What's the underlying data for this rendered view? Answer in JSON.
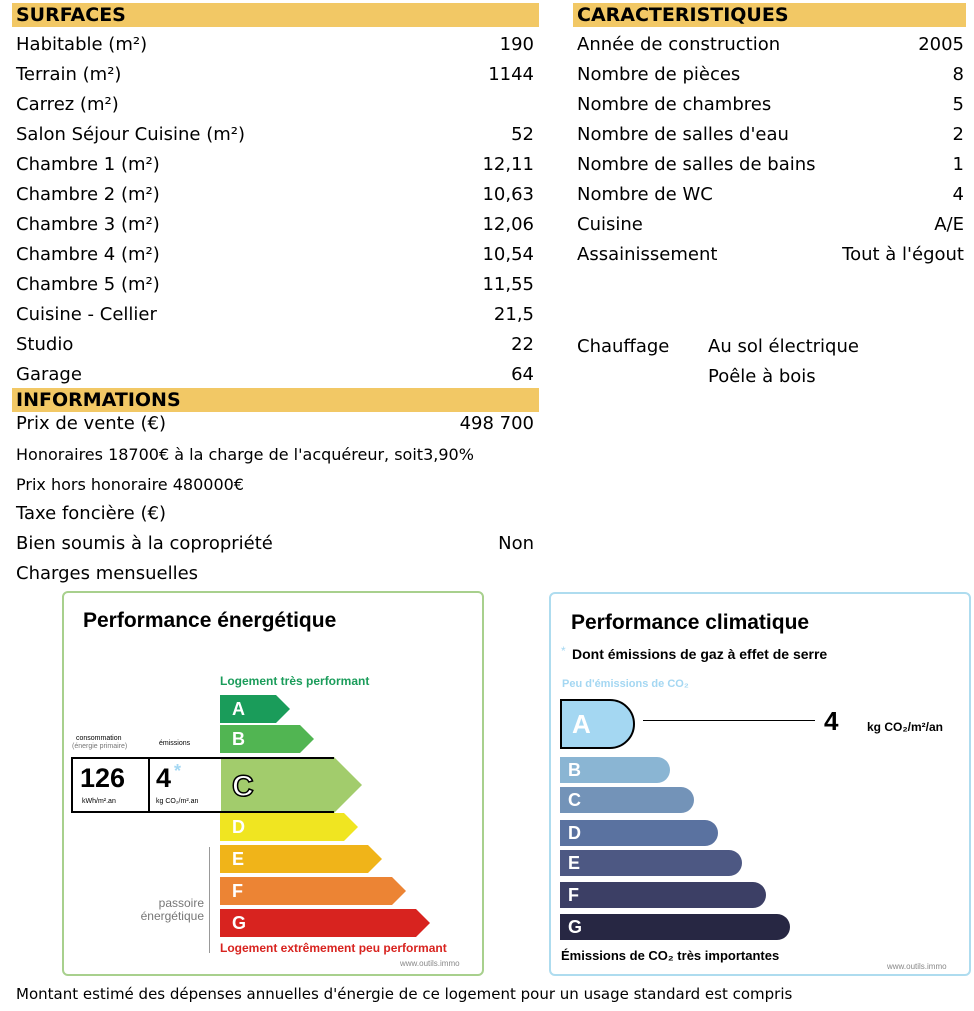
{
  "surfaces": {
    "header": "SURFACES",
    "rows": [
      {
        "label": "Habitable (m²)",
        "value": "190"
      },
      {
        "label": "Terrain (m²)",
        "value": "1144"
      },
      {
        "label": "Carrez (m²)",
        "value": ""
      },
      {
        "label": "Salon Séjour Cuisine (m²)",
        "value": "52"
      },
      {
        "label": "Chambre 1 (m²)",
        "value": "12,11"
      },
      {
        "label": "Chambre 2 (m²)",
        "value": "10,63"
      },
      {
        "label": "Chambre 3 (m²)",
        "value": "12,06"
      },
      {
        "label": "Chambre 4 (m²)",
        "value": "10,54"
      },
      {
        "label": "Chambre 5 (m²)",
        "value": "11,55"
      },
      {
        "label": "Cuisine - Cellier",
        "value": "21,5"
      },
      {
        "label": "Studio",
        "value": "22"
      },
      {
        "label": "Garage",
        "value": "64"
      }
    ]
  },
  "caracteristiques": {
    "header": "CARACTERISTIQUES",
    "rows": [
      {
        "label": "Année de construction",
        "value": "2005"
      },
      {
        "label": "Nombre de pièces",
        "value": "8"
      },
      {
        "label": "Nombre de chambres",
        "value": "5"
      },
      {
        "label": "Nombre de salles d'eau",
        "value": "2"
      },
      {
        "label": "Nombre de salles de bains",
        "value": "1"
      },
      {
        "label": "Nombre de WC",
        "value": "4"
      },
      {
        "label": "Cuisine",
        "value": "A/E"
      },
      {
        "label": "Assainissement",
        "value": "Tout à l'égout"
      }
    ],
    "chauffage_label": "Chauffage",
    "chauffage_values": [
      "Au sol électrique",
      "Poêle à bois"
    ]
  },
  "informations": {
    "header": "INFORMATIONS",
    "prix_label": "Prix de vente (€)",
    "prix_value": "498 700",
    "honoraires": "Honoraires 18700€ à la charge de l'acquéreur, soit3,90%",
    "prix_hors": "Prix hors honoraire 480000€",
    "taxe_label": "Taxe foncière (€)",
    "copro_label": "Bien soumis à la copropriété",
    "copro_value": "Non",
    "charges_label": "Charges mensuelles"
  },
  "energie": {
    "title": "Performance énergétique",
    "top_label": "Logement très performant",
    "bottom_label": "Logement extrêmement peu performant",
    "conso_label": "consommation",
    "conso_sub": "(énergie primaire)",
    "emissions_label": "émissions",
    "conso_value": "126",
    "conso_unit": "kWh/m².an",
    "emis_value": "4",
    "emis_star": "*",
    "emis_unit": "kg CO₂/m².an",
    "passoire_1": "passoire",
    "passoire_2": "énergétique",
    "classes": [
      {
        "letter": "A",
        "color": "#1a9c5a"
      },
      {
        "letter": "B",
        "color": "#51b552"
      },
      {
        "letter": "C",
        "color": "#a2cc6c"
      },
      {
        "letter": "D",
        "color": "#f0e521"
      },
      {
        "letter": "E",
        "color": "#f0b419"
      },
      {
        "letter": "F",
        "color": "#ec8434"
      },
      {
        "letter": "G",
        "color": "#d8231f"
      }
    ],
    "current_class": "C",
    "source": "www.outils.immo"
  },
  "climat": {
    "title": "Performance climatique",
    "subtitle_star": "*",
    "subtitle": "Dont émissions de gaz à effet de serre",
    "top_label": "Peu d'émissions de CO₂",
    "bottom_label": "Émissions de CO₂ très importantes",
    "value": "4",
    "unit": "kg CO₂/m²/an",
    "classes": [
      {
        "letter": "A",
        "color": "#a4d7f2"
      },
      {
        "letter": "B",
        "color": "#8ab5d3"
      },
      {
        "letter": "C",
        "color": "#7393b8"
      },
      {
        "letter": "D",
        "color": "#5a72a0"
      },
      {
        "letter": "E",
        "color": "#4d5883"
      },
      {
        "letter": "F",
        "color": "#3c3f65"
      },
      {
        "letter": "G",
        "color": "#272743"
      }
    ],
    "source": "www.outils.immo"
  },
  "footer": "Montant estimé des dépenses annuelles d'énergie de ce logement pour un usage standard est compris"
}
